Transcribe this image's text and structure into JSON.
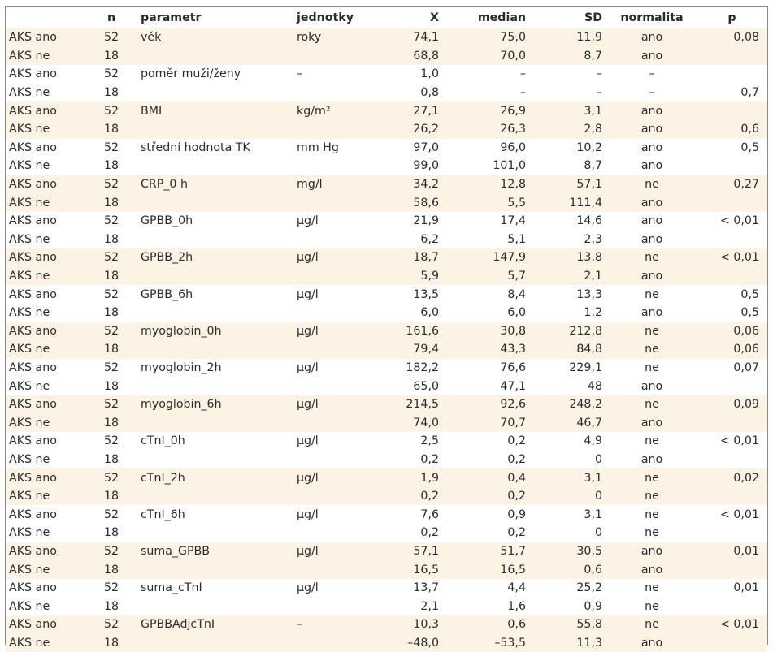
{
  "headers": {
    "group": "",
    "n": "n",
    "parameter": "parametr",
    "unit": "jednotky",
    "x": "X",
    "median": "median",
    "sd": "SD",
    "normality": "normalita",
    "p": "p"
  },
  "rows": [
    {
      "group": "AKS ano",
      "n": "52",
      "parameter": "věk",
      "unit": "roky",
      "x": "74,1",
      "median": "75,0",
      "sd": "11,9",
      "normality": "ano",
      "p": "0,08"
    },
    {
      "group": "AKS ne",
      "n": "18",
      "parameter": "",
      "unit": "",
      "x": "68,8",
      "median": "70,0",
      "sd": "8,7",
      "normality": "ano",
      "p": ""
    },
    {
      "group": "AKS ano",
      "n": "52",
      "parameter": "poměr muži/ženy",
      "unit": "–",
      "x": "1,0",
      "median": "–",
      "sd": "–",
      "normality": "–",
      "p": ""
    },
    {
      "group": "AKS ne",
      "n": "18",
      "parameter": "",
      "unit": "",
      "x": "0,8",
      "median": "–",
      "sd": "–",
      "normality": "–",
      "p": "0,7"
    },
    {
      "group": "AKS ano",
      "n": "52",
      "parameter": "BMI",
      "unit": "kg/m²",
      "x": "27,1",
      "median": "26,9",
      "sd": "3,1",
      "normality": "ano",
      "p": ""
    },
    {
      "group": "AKS ne",
      "n": "18",
      "parameter": "",
      "unit": "",
      "x": "26,2",
      "median": "26,3",
      "sd": "2,8",
      "normality": "ano",
      "p": "0,6"
    },
    {
      "group": "AKS ano",
      "n": "52",
      "parameter": "střední hodnota TK",
      "unit": "mm Hg",
      "x": "97,0",
      "median": "96,0",
      "sd": "10,2",
      "normality": "ano",
      "p": "0,5"
    },
    {
      "group": "AKS ne",
      "n": "18",
      "parameter": "",
      "unit": "",
      "x": "99,0",
      "median": "101,0",
      "sd": "8,7",
      "normality": "ano",
      "p": ""
    },
    {
      "group": "AKS ano",
      "n": "52",
      "parameter": "CRP_0 h",
      "unit": "mg/l",
      "x": "34,2",
      "median": "12,8",
      "sd": "57,1",
      "normality": "ne",
      "p": "0,27"
    },
    {
      "group": "AKS ne",
      "n": "18",
      "parameter": "",
      "unit": "",
      "x": "58,6",
      "median": "5,5",
      "sd": "111,4",
      "normality": "ano",
      "p": ""
    },
    {
      "group": "AKS ano",
      "n": "52",
      "parameter": "GPBB_0h",
      "unit": "µg/l",
      "x": "21,9",
      "median": "17,4",
      "sd": "14,6",
      "normality": "ano",
      "p": "< 0,01"
    },
    {
      "group": "AKS ne",
      "n": "18",
      "parameter": "",
      "unit": "",
      "x": "6,2",
      "median": "5,1",
      "sd": "2,3",
      "normality": "ano",
      "p": ""
    },
    {
      "group": "AKS ano",
      "n": "52",
      "parameter": "GPBB_2h",
      "unit": "µg/l",
      "x": "18,7",
      "median": "147,9",
      "sd": "13,8",
      "normality": "ne",
      "p": "< 0,01"
    },
    {
      "group": "AKS ne",
      "n": "18",
      "parameter": "",
      "unit": "",
      "x": "5,9",
      "median": "5,7",
      "sd": "2,1",
      "normality": "ano",
      "p": ""
    },
    {
      "group": "AKS ano",
      "n": "52",
      "parameter": "GPBB_6h",
      "unit": "µg/l",
      "x": "13,5",
      "median": "8,4",
      "sd": "13,3",
      "normality": "ne",
      "p": "0,5"
    },
    {
      "group": "AKS ne",
      "n": "18",
      "parameter": "",
      "unit": "",
      "x": "6,0",
      "median": "6,0",
      "sd": "1,2",
      "normality": "ano",
      "p": "0,5"
    },
    {
      "group": "AKS ano",
      "n": "52",
      "parameter": "myoglobin_0h",
      "unit": "µg/l",
      "x": "161,6",
      "median": "30,8",
      "sd": "212,8",
      "normality": "ne",
      "p": "0,06"
    },
    {
      "group": "AKS ne",
      "n": "18",
      "parameter": "",
      "unit": "",
      "x": "79,4",
      "median": "43,3",
      "sd": "84,8",
      "normality": "ne",
      "p": "0,06"
    },
    {
      "group": "AKS ano",
      "n": "52",
      "parameter": "myoglobin_2h",
      "unit": "µg/l",
      "x": "182,2",
      "median": "76,6",
      "sd": "229,1",
      "normality": "ne",
      "p": "0,07"
    },
    {
      "group": "AKS ne",
      "n": "18",
      "parameter": "",
      "unit": "",
      "x": "65,0",
      "median": "47,1",
      "sd": "48",
      "normality": "ano",
      "p": ""
    },
    {
      "group": "AKS ano",
      "n": "52",
      "parameter": "myoglobin_6h",
      "unit": "µg/l",
      "x": "214,5",
      "median": "92,6",
      "sd": "248,2",
      "normality": "ne",
      "p": "0,09"
    },
    {
      "group": "AKS ne",
      "n": "18",
      "parameter": "",
      "unit": "",
      "x": "74,0",
      "median": "70,7",
      "sd": "46,7",
      "normality": "ano",
      "p": ""
    },
    {
      "group": "AKS ano",
      "n": "52",
      "parameter": "cTnI_0h",
      "unit": "µg/l",
      "x": "2,5",
      "median": "0,2",
      "sd": "4,9",
      "normality": "ne",
      "p": "< 0,01"
    },
    {
      "group": "AKS ne",
      "n": "18",
      "parameter": "",
      "unit": "",
      "x": "0,2",
      "median": "0,2",
      "sd": "0",
      "normality": "ano",
      "p": ""
    },
    {
      "group": "AKS ano",
      "n": "52",
      "parameter": "cTnI_2h",
      "unit": "µg/l",
      "x": "1,9",
      "median": "0,4",
      "sd": "3,1",
      "normality": "ne",
      "p": "0,02"
    },
    {
      "group": "AKS ne",
      "n": "18",
      "parameter": "",
      "unit": "",
      "x": "0,2",
      "median": "0,2",
      "sd": "0",
      "normality": "ne",
      "p": ""
    },
    {
      "group": "AKS ano",
      "n": "52",
      "parameter": "cTnI_6h",
      "unit": "µg/l",
      "x": "7,6",
      "median": "0,9",
      "sd": "3,1",
      "normality": "ne",
      "p": "< 0,01"
    },
    {
      "group": "AKS ne",
      "n": "18",
      "parameter": "",
      "unit": "",
      "x": "0,2",
      "median": "0,2",
      "sd": "0",
      "normality": "ne",
      "p": ""
    },
    {
      "group": "AKS ano",
      "n": "52",
      "parameter": "suma_GPBB",
      "unit": "µg/l",
      "x": "57,1",
      "median": "51,7",
      "sd": "30,5",
      "normality": "ano",
      "p": "0,01"
    },
    {
      "group": "AKS ne",
      "n": "18",
      "parameter": "",
      "unit": "",
      "x": "16,5",
      "median": "16,5",
      "sd": "0,6",
      "normality": "ano",
      "p": ""
    },
    {
      "group": "AKS ano",
      "n": "52",
      "parameter": "suma_cTnI",
      "unit": "µg/l",
      "x": "13,7",
      "median": "4,4",
      "sd": "25,2",
      "normality": "ne",
      "p": "0,01"
    },
    {
      "group": "AKS ne",
      "n": "18",
      "parameter": "",
      "unit": "",
      "x": "2,1",
      "median": "1,6",
      "sd": "0,9",
      "normality": "ne",
      "p": ""
    },
    {
      "group": "AKS ano",
      "n": "52",
      "parameter": "GPBBAdjcTnI",
      "unit": "–",
      "x": "10,3",
      "median": "0,6",
      "sd": "55,8",
      "normality": "ne",
      "p": "< 0,01"
    },
    {
      "group": "AKS ne",
      "n": "18",
      "parameter": "",
      "unit": "",
      "x": "–48,0",
      "median": "–53,5",
      "sd": "11,3",
      "normality": "ano",
      "p": ""
    }
  ]
}
